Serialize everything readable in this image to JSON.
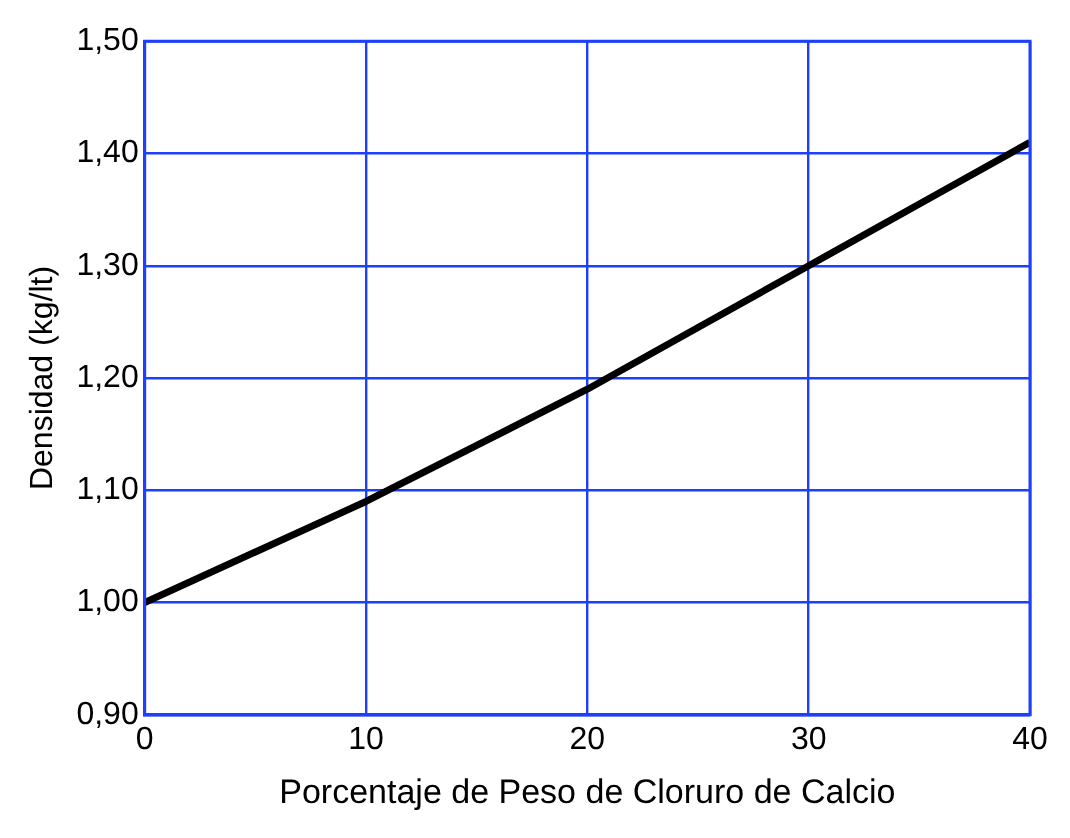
{
  "chart_data": {
    "type": "line",
    "xlabel": "Porcentaje de Peso de Cloruro de Calcio",
    "ylabel": "Densidad (kg/lt)",
    "x": [
      0,
      5,
      10,
      15,
      20,
      25,
      30,
      35,
      40
    ],
    "series": [
      {
        "color": "#000000",
        "values": [
          1.0,
          1.045,
          1.09,
          1.14,
          1.19,
          1.245,
          1.3,
          1.355,
          1.41
        ]
      }
    ],
    "xlim": [
      0,
      40
    ],
    "xticks": [
      0,
      10,
      20,
      30,
      40
    ],
    "ylim": [
      0.9,
      1.5
    ],
    "yticks": [
      {
        "value": 0.9,
        "label": "0,90"
      },
      {
        "value": 1.0,
        "label": "1,00"
      },
      {
        "value": 1.1,
        "label": "1,10"
      },
      {
        "value": 1.2,
        "label": "1,20"
      },
      {
        "value": 1.3,
        "label": "1,30"
      },
      {
        "value": 1.4,
        "label": "1,40"
      },
      {
        "value": 1.5,
        "label": "1,50"
      }
    ],
    "grid": true,
    "marker": "none",
    "line_style": "solid"
  }
}
